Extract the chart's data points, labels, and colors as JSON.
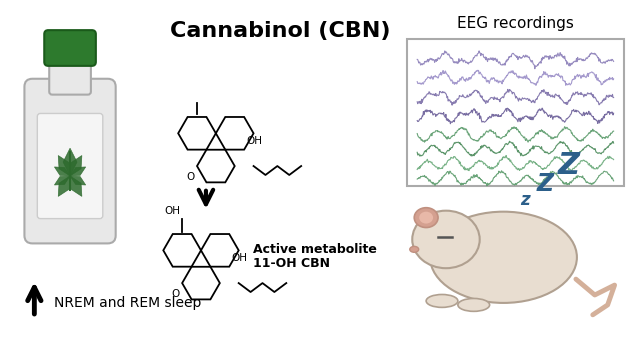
{
  "title": "Cannabinol (CBN)",
  "eeg_label": "EEG recordings",
  "metabolite_label1": "Active metabolite",
  "metabolite_label2": "11-OH CBN",
  "sleep_label": "NREM and REM sleep",
  "bg_color": "#ffffff",
  "title_color": "#000000",
  "arrow_color": "#000000",
  "eeg_colors_top": [
    "#8b7eb8",
    "#9b8fc8",
    "#7b6ea8",
    "#6b5e98"
  ],
  "eeg_colors_bottom": [
    "#5a9a6a",
    "#4a8a5a",
    "#6aaa7a",
    "#5a9a6a"
  ],
  "zzz_color": "#2c5f8a",
  "bottle_body_color": "#e8e8e8",
  "bottle_cap_color": "#2d7a2d",
  "bottle_label_color": "#f5f5f5",
  "leaf_color": "#2d6a2d",
  "mouse_body_color": "#e8ddd0",
  "mouse_ear_color": "#d4a090"
}
